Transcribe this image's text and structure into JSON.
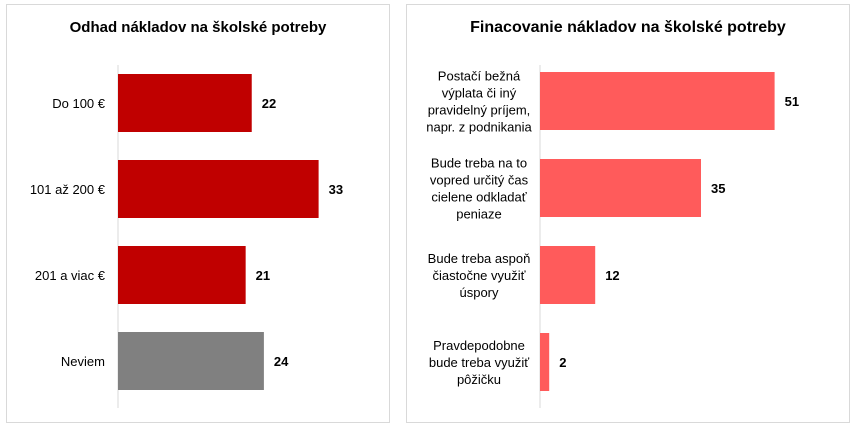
{
  "chart_data": [
    {
      "type": "bar",
      "orientation": "horizontal",
      "title": "Odhad nákladov na školské potreby",
      "categories": [
        "Do 100 €",
        "101 až 200 €",
        "201 a viac €",
        "Neviem"
      ],
      "values": [
        22,
        33,
        21,
        24
      ],
      "colors": [
        "#c00000",
        "#c00000",
        "#c00000",
        "#808080"
      ],
      "xlim": [
        0,
        38
      ],
      "grid": false,
      "legend": "none"
    },
    {
      "type": "bar",
      "orientation": "horizontal",
      "title": "Finacovanie nákladov na školské potreby",
      "categories": [
        [
          "Postačí bežná",
          "výplata či iný",
          "pravidelný príjem,",
          "napr. z podnikania"
        ],
        [
          "Bude treba na to",
          "vopred určitý čas",
          "cielene odkladať",
          "peniaze"
        ],
        [
          "Bude treba aspoň",
          "čiastočne využiť",
          "úspory"
        ],
        [
          "Pravdepodobne",
          "bude treba využiť",
          "pôžičku"
        ]
      ],
      "values": [
        51,
        35,
        12,
        2
      ],
      "colors": [
        "#ff5b5b",
        "#ff5b5b",
        "#ff5b5b",
        "#ff5b5b"
      ],
      "xlim": [
        0,
        60
      ],
      "grid": false,
      "legend": "none"
    }
  ]
}
